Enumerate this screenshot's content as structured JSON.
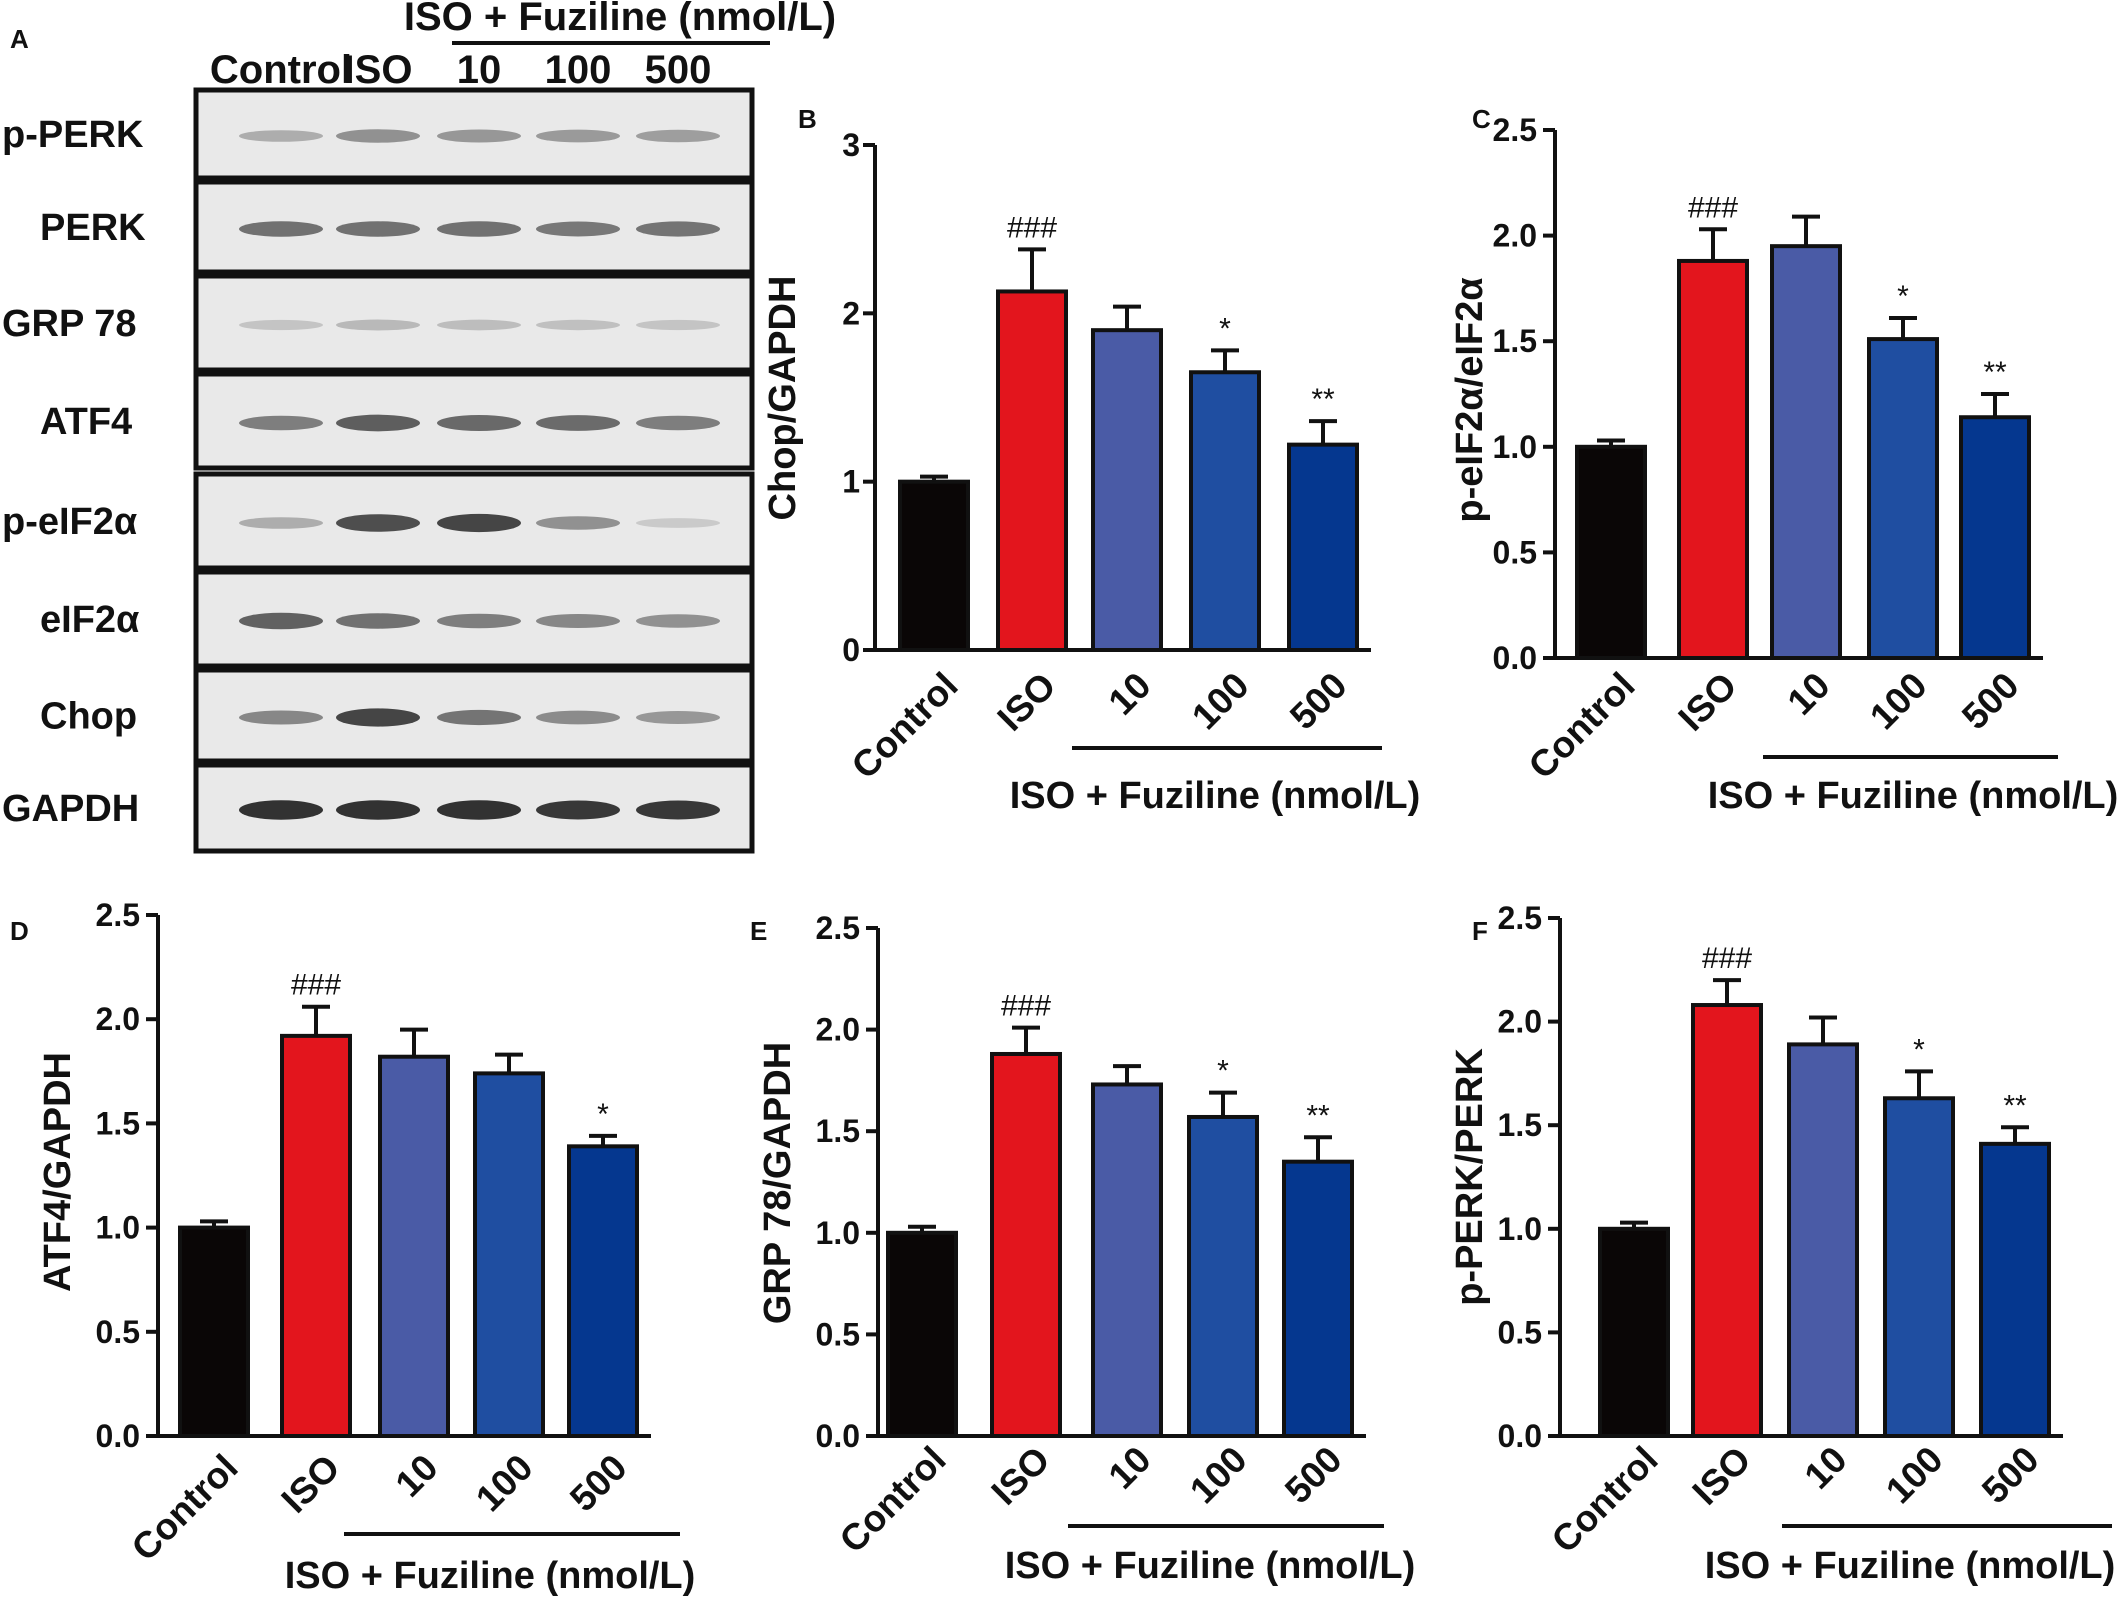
{
  "figure": {
    "panels": [
      "A",
      "B",
      "C",
      "D",
      "E",
      "F"
    ]
  },
  "western_blot": {
    "panel": "A",
    "group_label": "ISO + Fuziline (nmol/L)",
    "lanes": [
      "Control",
      "ISO",
      "10",
      "100",
      "500"
    ],
    "rows": [
      {
        "label": "p-PERK",
        "band_intensity": [
          0.3,
          0.45,
          0.42,
          0.4,
          0.38
        ]
      },
      {
        "label": "PERK",
        "band_intensity": [
          0.62,
          0.62,
          0.62,
          0.58,
          0.6
        ]
      },
      {
        "label": "GRP 78",
        "band_intensity": [
          0.18,
          0.24,
          0.22,
          0.2,
          0.18
        ]
      },
      {
        "label": "ATF4",
        "band_intensity": [
          0.55,
          0.72,
          0.66,
          0.65,
          0.55
        ]
      },
      {
        "label": "p-eIF2α",
        "band_intensity": [
          0.3,
          0.8,
          0.85,
          0.45,
          0.15
        ]
      },
      {
        "label": "eIF2α",
        "band_intensity": [
          0.7,
          0.62,
          0.55,
          0.5,
          0.45
        ]
      },
      {
        "label": "Chop",
        "band_intensity": [
          0.5,
          0.85,
          0.6,
          0.48,
          0.42
        ]
      },
      {
        "label": "GAPDH",
        "band_intensity": [
          0.95,
          0.95,
          0.95,
          0.92,
          0.92
        ]
      }
    ]
  },
  "colors": {
    "Control": "#0a0606",
    "ISO": "#e3151d",
    "10": "#4a5ba6",
    "100": "#1f4ea1",
    "500": "#05378f"
  },
  "chart_data": [
    {
      "panel": "B",
      "type": "bar",
      "categories": [
        "Control",
        "ISO",
        "10",
        "100",
        "500"
      ],
      "values": [
        1.0,
        2.13,
        1.9,
        1.65,
        1.22
      ],
      "errors": [
        0.03,
        0.25,
        0.14,
        0.13,
        0.14
      ],
      "annotations": [
        "",
        "###",
        "",
        "*",
        "**"
      ],
      "ylabel": "Chop/GAPDH",
      "group_label": "ISO + Fuziline (nmol/L)",
      "ylim": [
        0,
        3
      ],
      "yticks": [
        "0",
        "1",
        "2",
        "3"
      ]
    },
    {
      "panel": "C",
      "type": "bar",
      "categories": [
        "Control",
        "ISO",
        "10",
        "100",
        "500"
      ],
      "values": [
        1.0,
        1.88,
        1.95,
        1.51,
        1.14
      ],
      "errors": [
        0.03,
        0.15,
        0.14,
        0.1,
        0.11
      ],
      "annotations": [
        "",
        "###",
        "",
        "*",
        "**"
      ],
      "ylabel": "p-eIF2α/eIF2α",
      "group_label": "ISO + Fuziline (nmol/L)",
      "ylim": [
        0,
        2.5
      ],
      "yticks": [
        "0.0",
        "0.5",
        "1.0",
        "1.5",
        "2.0",
        "2.5"
      ]
    },
    {
      "panel": "D",
      "type": "bar",
      "categories": [
        "Control",
        "ISO",
        "10",
        "100",
        "500"
      ],
      "values": [
        1.0,
        1.92,
        1.82,
        1.74,
        1.39
      ],
      "errors": [
        0.03,
        0.14,
        0.13,
        0.09,
        0.05
      ],
      "annotations": [
        "",
        "###",
        "",
        "",
        "*"
      ],
      "ylabel": "ATF4/GAPDH",
      "group_label": "ISO + Fuziline (nmol/L)",
      "ylim": [
        0,
        2.5
      ],
      "yticks": [
        "0.0",
        "0.5",
        "1.0",
        "1.5",
        "2.0",
        "2.5"
      ]
    },
    {
      "panel": "E",
      "type": "bar",
      "categories": [
        "Control",
        "ISO",
        "10",
        "100",
        "500"
      ],
      "values": [
        1.0,
        1.88,
        1.73,
        1.57,
        1.35
      ],
      "errors": [
        0.03,
        0.13,
        0.09,
        0.12,
        0.12
      ],
      "annotations": [
        "",
        "###",
        "",
        "*",
        "**"
      ],
      "ylabel": "GRP 78/GAPDH",
      "group_label": "ISO + Fuziline (nmol/L)",
      "ylim": [
        0,
        2.5
      ],
      "yticks": [
        "0.0",
        "0.5",
        "1.0",
        "1.5",
        "2.0",
        "2.5"
      ]
    },
    {
      "panel": "F",
      "type": "bar",
      "categories": [
        "Control",
        "ISO",
        "10",
        "100",
        "500"
      ],
      "values": [
        1.0,
        2.08,
        1.89,
        1.63,
        1.41
      ],
      "errors": [
        0.03,
        0.12,
        0.13,
        0.13,
        0.08
      ],
      "annotations": [
        "",
        "###",
        "",
        "*",
        "**"
      ],
      "ylabel": "p-PERK/PERK",
      "group_label": "ISO + Fuziline (nmol/L)",
      "ylim": [
        0,
        2.5
      ],
      "yticks": [
        "0.0",
        "0.5",
        "1.0",
        "1.5",
        "2.0",
        "2.5"
      ]
    }
  ]
}
